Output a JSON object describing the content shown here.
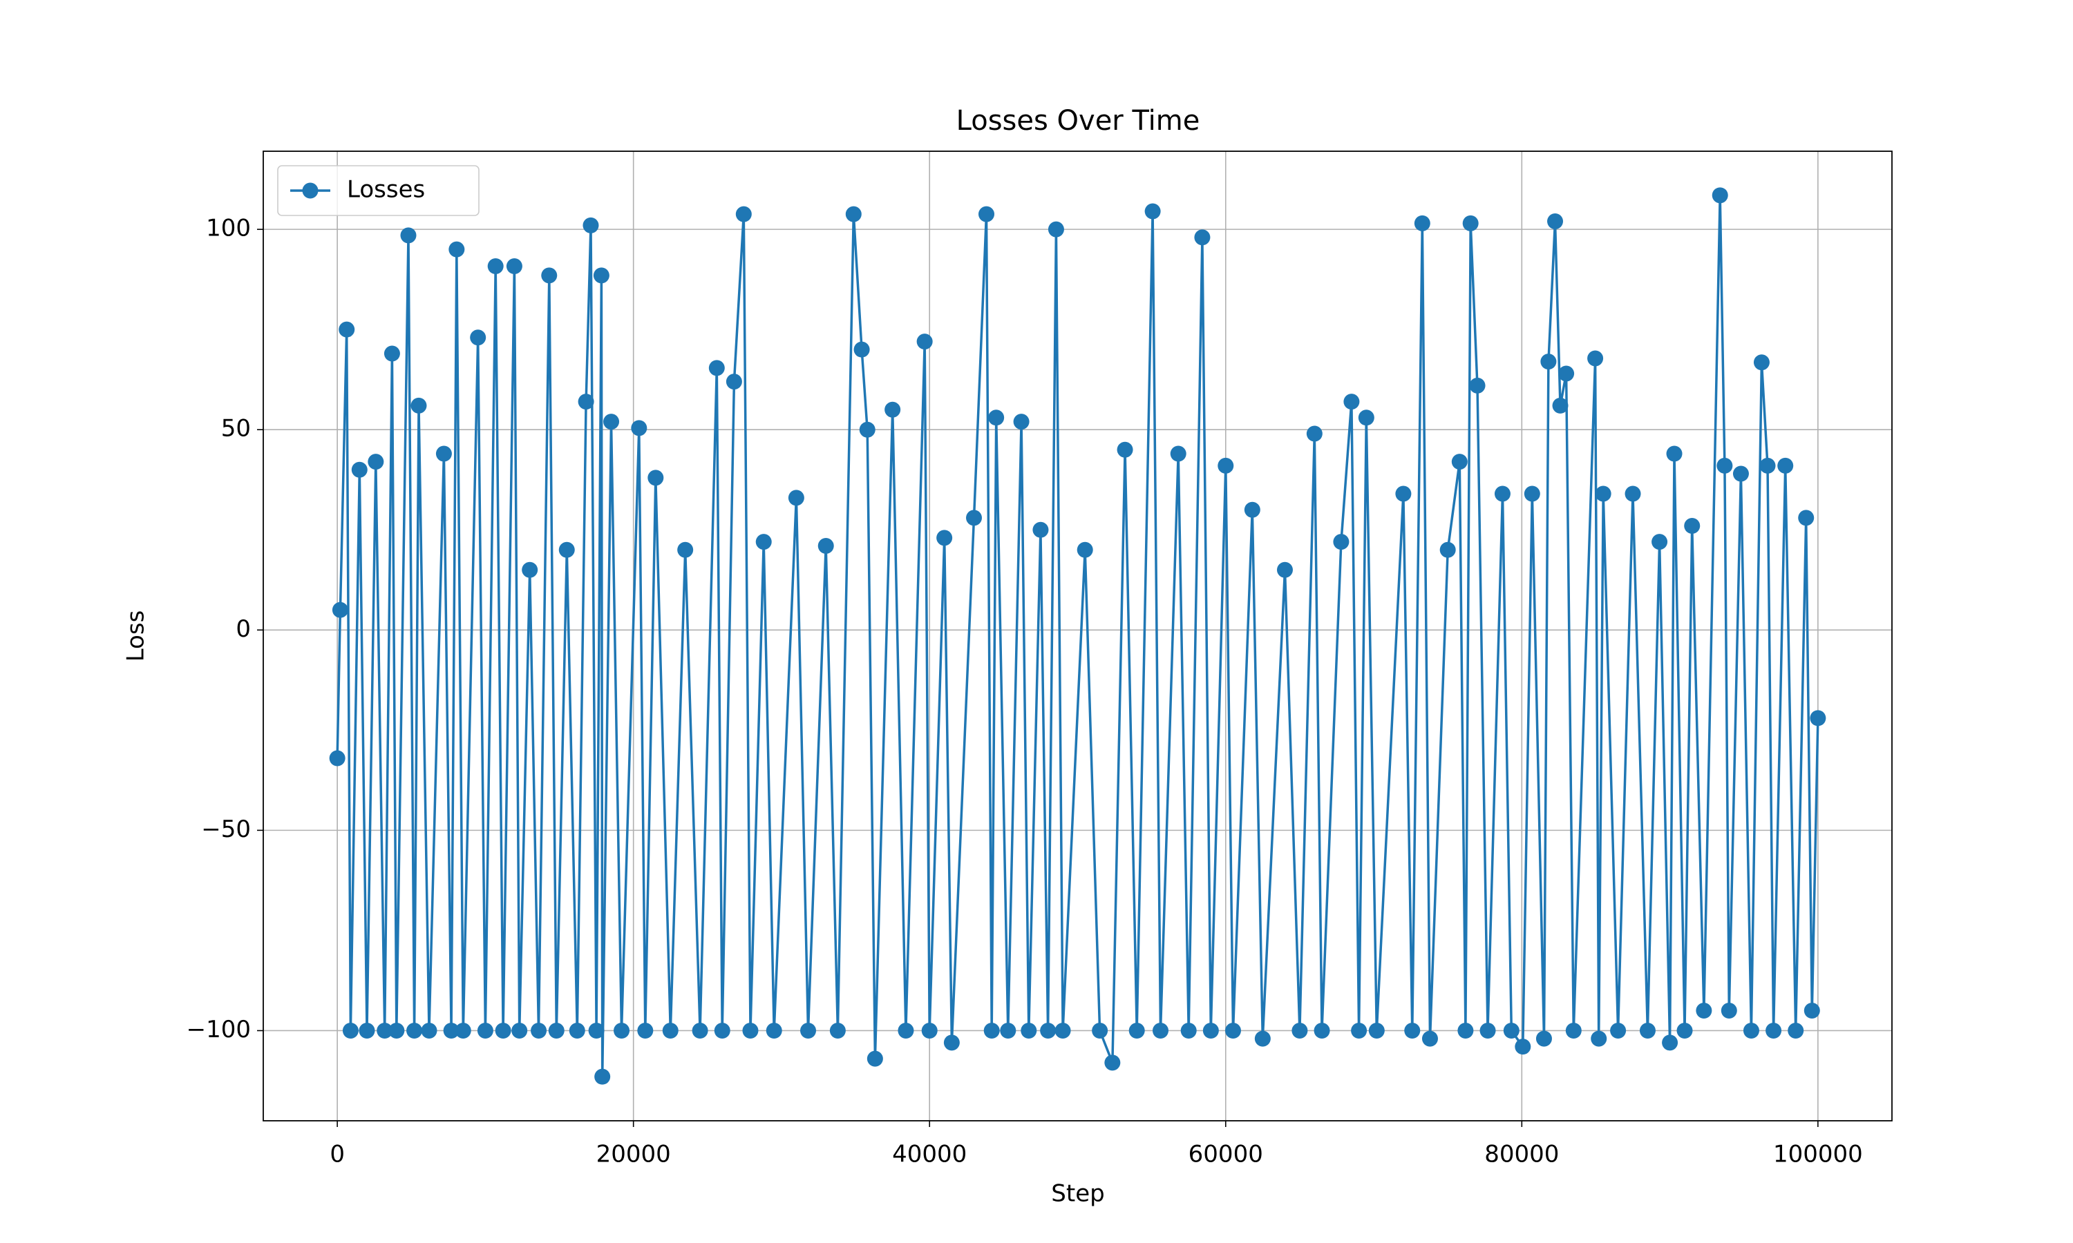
{
  "chart_data": {
    "type": "line",
    "title": "Losses Over Time",
    "x_label": "Step",
    "y_label": "Loss",
    "legend": "upper left",
    "grid": true,
    "xlim": [
      -5000,
      105000
    ],
    "xticks": [
      0,
      20000,
      40000,
      60000,
      80000,
      100000
    ],
    "ylim": [
      -122.5,
      119.5
    ],
    "yticks": [
      {
        "value": -100,
        "label": "−100"
      },
      {
        "value": -50,
        "label": "−50"
      },
      0,
      50,
      100
    ],
    "series": [
      {
        "name": "Losses",
        "color": "#1f77b4",
        "x": [
          0,
          200,
          634,
          900,
          1500,
          2000,
          2600,
          3200,
          3700,
          4000,
          4800,
          5200,
          5500,
          6200,
          7200,
          7700,
          8060,
          8500,
          9500,
          10000,
          10690,
          11200,
          11960,
          12300,
          13000,
          13600,
          14310,
          14800,
          15500,
          16200,
          16800,
          17120,
          17500,
          17840,
          17900,
          18500,
          19200,
          20380,
          20800,
          21500,
          22500,
          23500,
          24500,
          25630,
          26000,
          26800,
          27450,
          27900,
          28800,
          29500,
          31000,
          31800,
          33000,
          33800,
          34870,
          35420,
          35800,
          36320,
          37500,
          38400,
          39670,
          40000,
          41000,
          41500,
          43000,
          43840,
          44200,
          44500,
          45300,
          46200,
          46700,
          47500,
          48000,
          48550,
          49000,
          50500,
          51500,
          52350,
          53200,
          54000,
          55070,
          55600,
          56800,
          57500,
          58420,
          59000,
          60000,
          60500,
          61800,
          62500,
          64000,
          65000,
          66000,
          66500,
          67800,
          68500,
          69000,
          69500,
          70200,
          72000,
          72600,
          73280,
          73800,
          75000,
          75800,
          76200,
          76540,
          77000,
          77700,
          78700,
          79300,
          80070,
          80700,
          81500,
          81800,
          82250,
          82600,
          83000,
          83500,
          84960,
          85200,
          85500,
          86500,
          87500,
          88500,
          89300,
          90000,
          90300,
          91000,
          91500,
          92300,
          93390,
          93700,
          94000,
          94800,
          95500,
          96200,
          96600,
          97000,
          97800,
          98500,
          99200,
          99600,
          100000
        ],
        "values": [
          -32,
          5,
          75,
          -100,
          40,
          -100,
          42,
          -100,
          69,
          -100,
          98.5,
          -100,
          56,
          -100,
          44,
          -100,
          95,
          -100,
          73,
          -100,
          90.8,
          -100,
          90.8,
          -100,
          15,
          -100,
          88.5,
          -100,
          20,
          -100,
          57,
          101,
          -100,
          88.5,
          -111.5,
          52,
          -100,
          50.4,
          -100,
          38,
          -100,
          20,
          -100,
          65.4,
          -100,
          62,
          103.8,
          -100,
          22,
          -100,
          33,
          -100,
          21,
          -100,
          103.8,
          70,
          50,
          -107,
          55,
          -100,
          72,
          -100,
          23,
          -103,
          28,
          103.8,
          -100,
          53,
          -100,
          52,
          -100,
          25,
          -100,
          100,
          -100,
          20,
          -100,
          -108,
          45,
          -100,
          104.5,
          -100,
          44,
          -100,
          98,
          -100,
          41,
          -100,
          30,
          -102,
          15,
          -100,
          49,
          -100,
          22,
          57,
          -100,
          53,
          -100,
          34,
          -100,
          101.5,
          -102,
          20,
          42,
          -100,
          101.5,
          61,
          -100,
          34,
          -100,
          -104,
          34,
          -102,
          67,
          102,
          56,
          64,
          -100,
          67.8,
          -102,
          34,
          -100,
          34,
          -100,
          22,
          -103,
          44,
          -100,
          26,
          -95,
          108.5,
          41,
          -95,
          39,
          -100,
          66.8,
          41,
          -100,
          41,
          -100,
          28,
          -95,
          -22
        ]
      }
    ]
  }
}
